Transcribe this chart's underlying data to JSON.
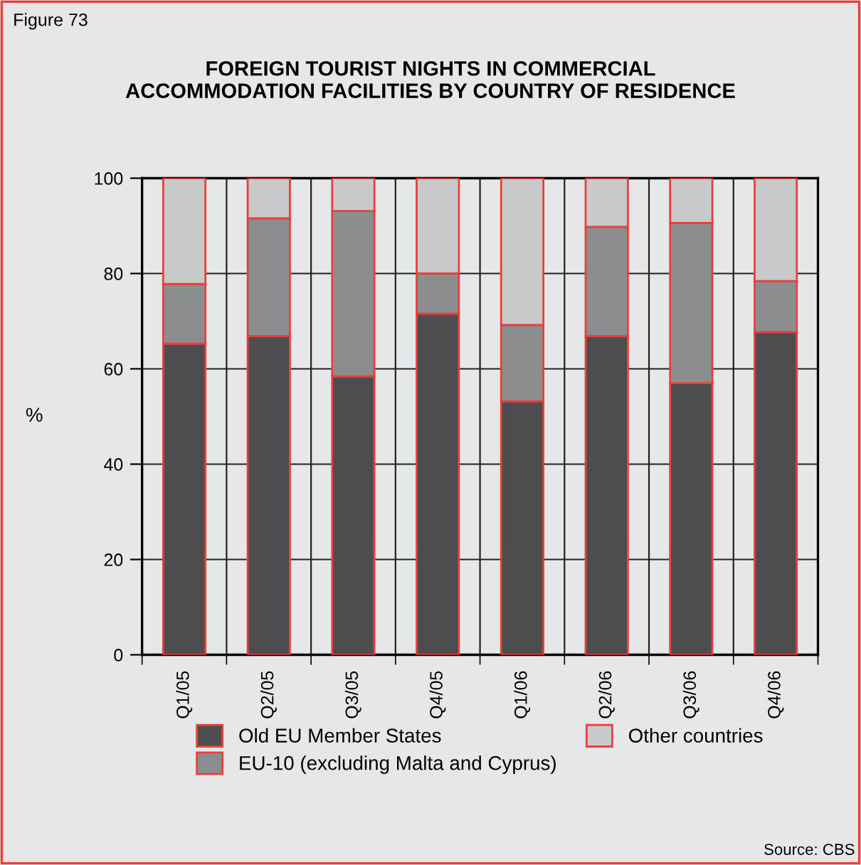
{
  "chart_data": {
    "type": "bar",
    "stacked": true,
    "title": "FOREIGN TOURIST NIGHTS IN COMMERCIAL\nACCOMMODATION FACILITIES BY COUNTRY OF RESIDENCE",
    "ylabel": "%",
    "categories": [
      "Q1/05",
      "Q2/05",
      "Q3/05",
      "Q4/05",
      "Q1/06",
      "Q2/06",
      "Q3/06",
      "Q4/06"
    ],
    "series": [
      {
        "name": "Old EU Member States",
        "color": "#4d4d4f",
        "values": [
          65.3,
          66.9,
          58.4,
          71.6,
          53.2,
          66.9,
          57.0,
          67.7
        ]
      },
      {
        "name": "EU-10 (excluding Malta and Cyprus)",
        "color": "#8c8d8f",
        "values": [
          12.5,
          24.7,
          34.7,
          8.4,
          16.0,
          22.9,
          33.6,
          10.7
        ]
      },
      {
        "name": "Other countries",
        "color": "#c8c9cb",
        "values": [
          22.2,
          8.4,
          6.9,
          20.0,
          30.8,
          10.2,
          9.4,
          21.6
        ]
      }
    ],
    "ylim": [
      0,
      100
    ],
    "yticks": [
      0,
      20,
      40,
      60,
      80,
      100
    ],
    "grid": true,
    "legend": "bottom",
    "annotations": [
      "Figure 73",
      "Source: CBS"
    ]
  }
}
